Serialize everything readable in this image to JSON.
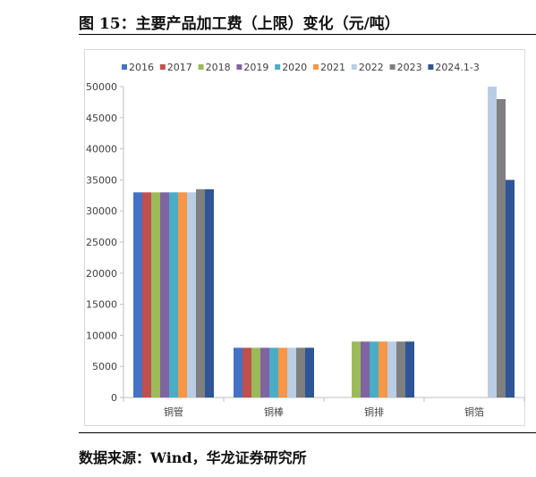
{
  "title": "图 15：主要产品加工费（上限）变化（元/吨）",
  "source": "数据来源：Wind，华龙证券研究所",
  "chart_data": {
    "type": "bar",
    "title": "",
    "xlabel": "",
    "ylabel": "",
    "categories": [
      "铜管",
      "铜棒",
      "铜排",
      "铜箔"
    ],
    "ylim": [
      0,
      50000
    ],
    "yticks": [
      0,
      5000,
      10000,
      15000,
      20000,
      25000,
      30000,
      35000,
      40000,
      45000,
      50000
    ],
    "grid": false,
    "legend": "top",
    "series": [
      {
        "name": "2016",
        "color": "#4472c4",
        "values": [
          33000,
          8000,
          null,
          null
        ]
      },
      {
        "name": "2017",
        "color": "#c0504d",
        "values": [
          33000,
          8000,
          null,
          null
        ]
      },
      {
        "name": "2018",
        "color": "#9bbb59",
        "values": [
          33000,
          8000,
          9000,
          null
        ]
      },
      {
        "name": "2019",
        "color": "#8064a2",
        "values": [
          33000,
          8000,
          9000,
          null
        ]
      },
      {
        "name": "2020",
        "color": "#4bacc6",
        "values": [
          33000,
          8000,
          9000,
          null
        ]
      },
      {
        "name": "2021",
        "color": "#f79646",
        "values": [
          33000,
          8000,
          9000,
          null
        ]
      },
      {
        "name": "2022",
        "color": "#b9cde5",
        "values": [
          33000,
          8000,
          9000,
          50000
        ]
      },
      {
        "name": "2023",
        "color": "#7f7f7f",
        "values": [
          33500,
          8000,
          9000,
          48000
        ]
      },
      {
        "name": "2024.1-3",
        "color": "#2e5597",
        "values": [
          33500,
          8000,
          9000,
          35000
        ]
      }
    ]
  }
}
